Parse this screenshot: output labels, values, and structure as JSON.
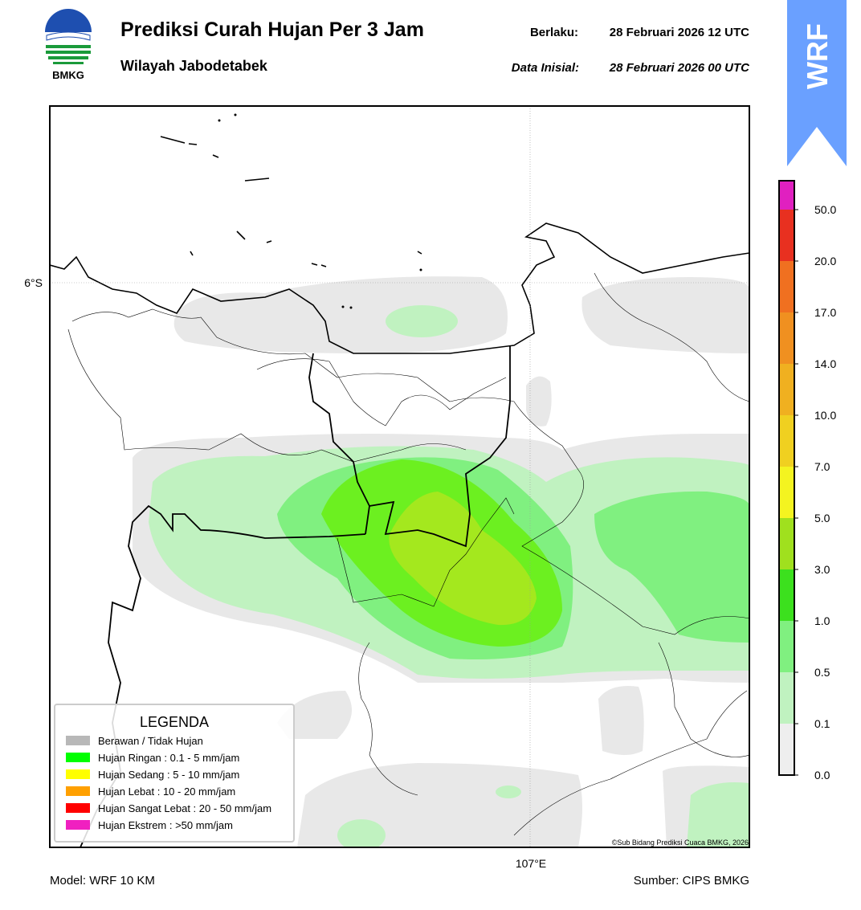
{
  "header": {
    "logo_text": "BMKG",
    "title": "Prediksi Curah Hujan Per 3 Jam",
    "subtitle": "Wilayah Jabodetabek",
    "valid_label": "Berlaku:",
    "valid_time": "28 Februari 2026 12 UTC",
    "init_label": "Data Inisial:",
    "init_time": "28 Februari 2026 00 UTC",
    "badge": "WRF"
  },
  "map": {
    "lat_label": "6°S",
    "lon_label": "107°E",
    "copyright": "©Sub Bidang Prediksi Cuaca BMKG, 2026"
  },
  "legend": {
    "title": "LEGENDA",
    "items": [
      {
        "label": "Berawan / Tidak Hujan",
        "color": "#b8b8b8"
      },
      {
        "label": "Hujan Ringan : 0.1 - 5 mm/jam",
        "color": "#00ff00"
      },
      {
        "label": "Hujan Sedang : 5 - 10 mm/jam",
        "color": "#ffff00"
      },
      {
        "label": "Hujan Lebat : 10 - 20 mm/jam",
        "color": "#ffa000"
      },
      {
        "label": "Hujan Sangat Lebat : 20 - 50 mm/jam",
        "color": "#ff0000"
      },
      {
        "label": "Hujan Ekstrem : >50 mm/jam",
        "color": "#f020c0"
      }
    ]
  },
  "colorbar": {
    "labels": [
      "0.0",
      "0.1",
      "0.5",
      "1.0",
      "3.0",
      "5.0",
      "7.0",
      "10.0",
      "14.0",
      "17.0",
      "20.0",
      "50.0"
    ],
    "colors": [
      "#eeeeee",
      "#c0f2c0",
      "#80f080",
      "#3ce01e",
      "#a0e01e",
      "#f4f420",
      "#f0d020",
      "#f0b020",
      "#f09020",
      "#f07020",
      "#e83020",
      "#e020c0"
    ]
  },
  "footer": {
    "model": "Model: WRF 10 KM",
    "source": "Sumber: CIPS BMKG"
  }
}
